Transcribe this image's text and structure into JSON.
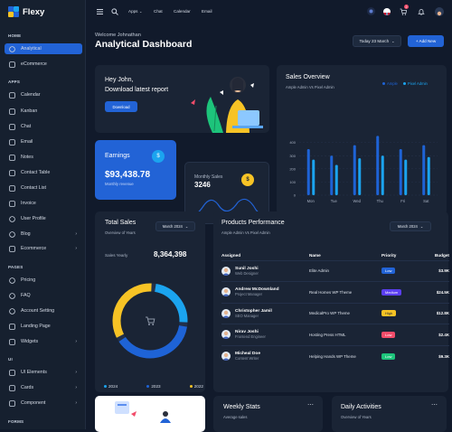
{
  "brand": {
    "name": "Flexy"
  },
  "sidebar": {
    "sections": [
      {
        "label": "HOME",
        "items": [
          {
            "label": "Analytical",
            "icon": "aperture-icon",
            "active": true
          },
          {
            "label": "eCommerce",
            "icon": "cart-icon"
          }
        ]
      },
      {
        "label": "APPS",
        "items": [
          {
            "label": "Calendar",
            "icon": "calendar-icon"
          },
          {
            "label": "Kanban",
            "icon": "notebook-icon"
          },
          {
            "label": "Chat",
            "icon": "message-icon"
          },
          {
            "label": "Email",
            "icon": "mail-icon"
          },
          {
            "label": "Notes",
            "icon": "notes-icon"
          },
          {
            "label": "Contact Table",
            "icon": "phone-icon"
          },
          {
            "label": "Contact List",
            "icon": "list-icon"
          },
          {
            "label": "Invoice",
            "icon": "file-text-icon"
          },
          {
            "label": "User Profile",
            "icon": "user-circle-icon"
          },
          {
            "label": "Blog",
            "icon": "chart-donut-icon",
            "chevron": true
          },
          {
            "label": "Ecommerce",
            "icon": "basket-icon",
            "chevron": true
          }
        ]
      },
      {
        "label": "PAGES",
        "items": [
          {
            "label": "Pricing",
            "icon": "currency-dollar-icon"
          },
          {
            "label": "FAQ",
            "icon": "help-icon"
          },
          {
            "label": "Account Setting",
            "icon": "user-circle-icon"
          },
          {
            "label": "Landing Page",
            "icon": "app-window-icon"
          },
          {
            "label": "Widgets",
            "icon": "layout-icon",
            "chevron": true
          }
        ]
      },
      {
        "label": "UI",
        "items": [
          {
            "label": "UI Elements",
            "icon": "layout-grid-icon",
            "chevron": true
          },
          {
            "label": "Cards",
            "icon": "cards-icon",
            "chevron": true
          },
          {
            "label": "Component",
            "icon": "components-icon",
            "chevron": true
          }
        ]
      },
      {
        "label": "FORMS",
        "items": []
      }
    ]
  },
  "topbar": {
    "menus": [
      "Apps",
      "Chat",
      "Calendar",
      "Email"
    ],
    "apps_chevron": "⌄",
    "notif_count": "2"
  },
  "header": {
    "welcome": "Welcome Johnathan",
    "title": "Analytical Dashboard",
    "date_btn": "Today 23 March",
    "add_btn": "+ Add New"
  },
  "hero": {
    "greeting": "Hey John,",
    "line2": "Download latest report",
    "download_btn": "Download"
  },
  "earnings": {
    "label": "Earnings",
    "amount": "$93,438.78",
    "sub": "Monthly revenue",
    "icon": "$"
  },
  "monthly_sales": {
    "label": "Monthly Sales",
    "value": "3246",
    "icon": "$"
  },
  "sales_overview": {
    "title": "Sales Overview",
    "subtitle": "Ample Admin Vs Pixel Admin",
    "legend": [
      "Ample",
      "Pixel Admin"
    ]
  },
  "colors": {
    "accent": "#2263d6",
    "bar1": "#1e63d6",
    "bar2": "#1ba4ef",
    "yellow": "#f7c325",
    "green": "#1dc47b",
    "pink": "#f24c6a",
    "purple": "#5b3ff0"
  },
  "chart_data": {
    "type": "bar",
    "title": "Sales Overview",
    "categories": [
      "Mon",
      "Tue",
      "Wed",
      "Thu",
      "Fri",
      "Sat"
    ],
    "series": [
      {
        "name": "Ample",
        "values": [
          350,
          300,
          380,
          450,
          350,
          380
        ]
      },
      {
        "name": "Pixel Admin",
        "values": [
          270,
          230,
          280,
          300,
          270,
          290
        ]
      }
    ],
    "yticks": [
      0,
      100,
      200,
      300,
      400
    ],
    "ylim": [
      0,
      480
    ]
  },
  "total_sales": {
    "title": "Total Sales",
    "subtitle": "Overview of Years",
    "filter": "March 2024",
    "yearly_label": "Sales Yearly",
    "yearly_value": "8,364,398",
    "legend": [
      {
        "label": "2024",
        "color": "#1ba4ef"
      },
      {
        "label": "2023",
        "color": "#1e63d6"
      },
      {
        "label": "2022",
        "color": "#f7c325"
      }
    ],
    "donut": [
      {
        "name": "2024",
        "value": 25
      },
      {
        "name": "2023",
        "value": 40
      },
      {
        "name": "2022",
        "value": 35
      }
    ]
  },
  "products": {
    "title": "Products Performance",
    "subtitle": "Ample Admin Vs Pixel Admin",
    "filter": "March 2024",
    "headers": [
      "Assigned",
      "Name",
      "Priority",
      "Budget"
    ],
    "rows": [
      {
        "name": "Sunil Joshi",
        "role": "Web Designer",
        "project": "Elite Admin",
        "priority": "Low",
        "budget": "$3.9K",
        "color": "#2263d6"
      },
      {
        "name": "Andrew McDownland",
        "role": "Project Manager",
        "project": "Real Homes WP Theme",
        "priority": "Medium",
        "budget": "$24.5K",
        "color": "#5b3ff0"
      },
      {
        "name": "Christopher Jamil",
        "role": "SEO Manager",
        "project": "MedicalPro WP Theme",
        "priority": "High",
        "budget": "$12.8K",
        "color": "#f7c325"
      },
      {
        "name": "Nirav Joshi",
        "role": "Frontend Engineer",
        "project": "Hosting Press HTML",
        "priority": "Low",
        "budget": "$2.4K",
        "color": "#f24c6a"
      },
      {
        "name": "Micheal Doe",
        "role": "Content Writer",
        "project": "Helping Hands WP Theme",
        "priority": "Low",
        "budget": "$9.3K",
        "color": "#1dc47b"
      }
    ]
  },
  "weekly": {
    "title": "Weekly Stats",
    "subtitle": "Average sales",
    "menu": "⋯"
  },
  "daily": {
    "title": "Daily Activities",
    "subtitle": "Overview of Years",
    "menu": "⋯"
  }
}
